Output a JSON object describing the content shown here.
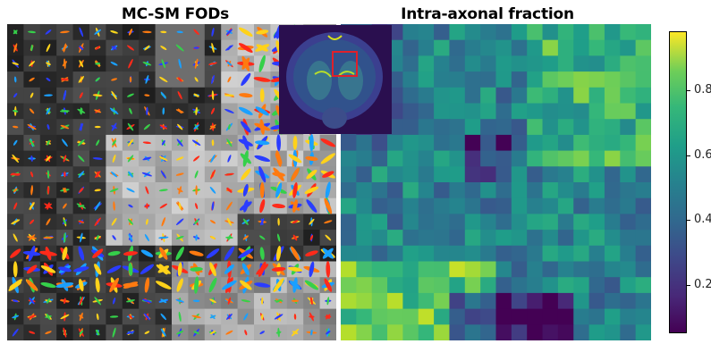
{
  "titles": {
    "left": "MC-SM FODs",
    "right": "Intra-axonal fraction"
  },
  "colorbar": {
    "colormap": "viridis",
    "ticks": [
      "0.2",
      "0.4",
      "0.6",
      "0.8"
    ],
    "range": [
      0.1,
      1.0
    ]
  },
  "colors": {
    "inset_box": "#e0202a",
    "background_fod": "#000000"
  }
}
